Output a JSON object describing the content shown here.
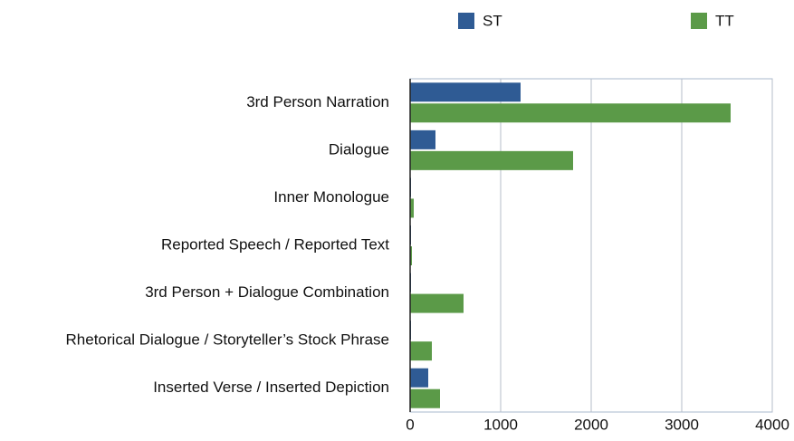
{
  "chart_data": {
    "type": "bar",
    "orientation": "horizontal",
    "categories": [
      "3rd Person Narration",
      "Dialogue",
      "Inner Monologue",
      "Reported Speech / Reported Text",
      "3rd Person + Dialogue Combination",
      "Rhetorical Dialogue / Storyteller’s Stock Phrase",
      "Inserted Verse / Inserted Depiction"
    ],
    "series": [
      {
        "name": "ST",
        "color": "#2f5b94",
        "values": [
          1220,
          280,
          5,
          5,
          5,
          5,
          200
        ]
      },
      {
        "name": "TT",
        "color": "#5b9a48",
        "values": [
          3540,
          1800,
          40,
          20,
          590,
          240,
          330
        ]
      }
    ],
    "xlim": [
      0,
      4000
    ],
    "xticks": [
      0,
      1000,
      2000,
      3000,
      4000
    ],
    "grid": true,
    "legend": "top"
  }
}
